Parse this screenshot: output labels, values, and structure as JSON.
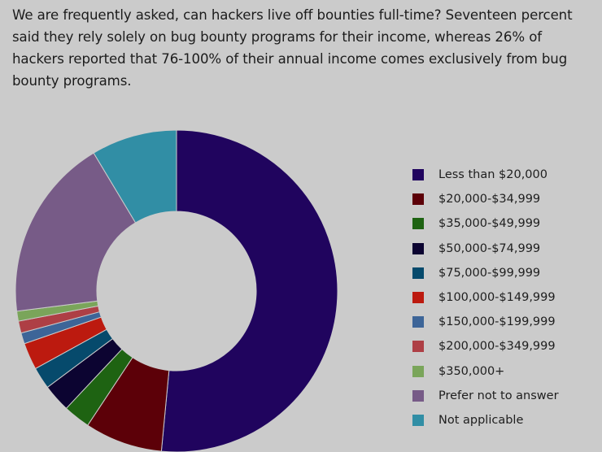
{
  "intro_text": "We are frequently asked, can hackers live off bounties full-time? Seventeen percent said they rely solely on bug bounty programs for their income, whereas 26% of hackers reported that 76-100% of their annual income comes exclusively from bug bounty programs.",
  "chart_data": {
    "type": "pie",
    "donut": true,
    "legend_position": "right",
    "unit": "%",
    "categories": [
      "Less than $20,000",
      "$20,000-$34,999",
      "$35,000-$49,999",
      "$50,000-$74,999",
      "$75,000-$99,999",
      "$100,000-$149,999",
      "$150,000-$199,999",
      "$200,000-$349,999",
      "$350,000+",
      "Prefer not to answer",
      "Not applicable"
    ],
    "values": [
      51.5,
      7.8,
      2.7,
      2.8,
      2.2,
      2.7,
      1.1,
      1.2,
      1.0,
      18.4,
      8.6
    ],
    "colors": [
      "#20045e",
      "#5c0008",
      "#1e6312",
      "#0c0431",
      "#064a6c",
      "#bc1a0f",
      "#3d6598",
      "#ae3f45",
      "#7aa55a",
      "#775b87",
      "#318ea5"
    ]
  }
}
